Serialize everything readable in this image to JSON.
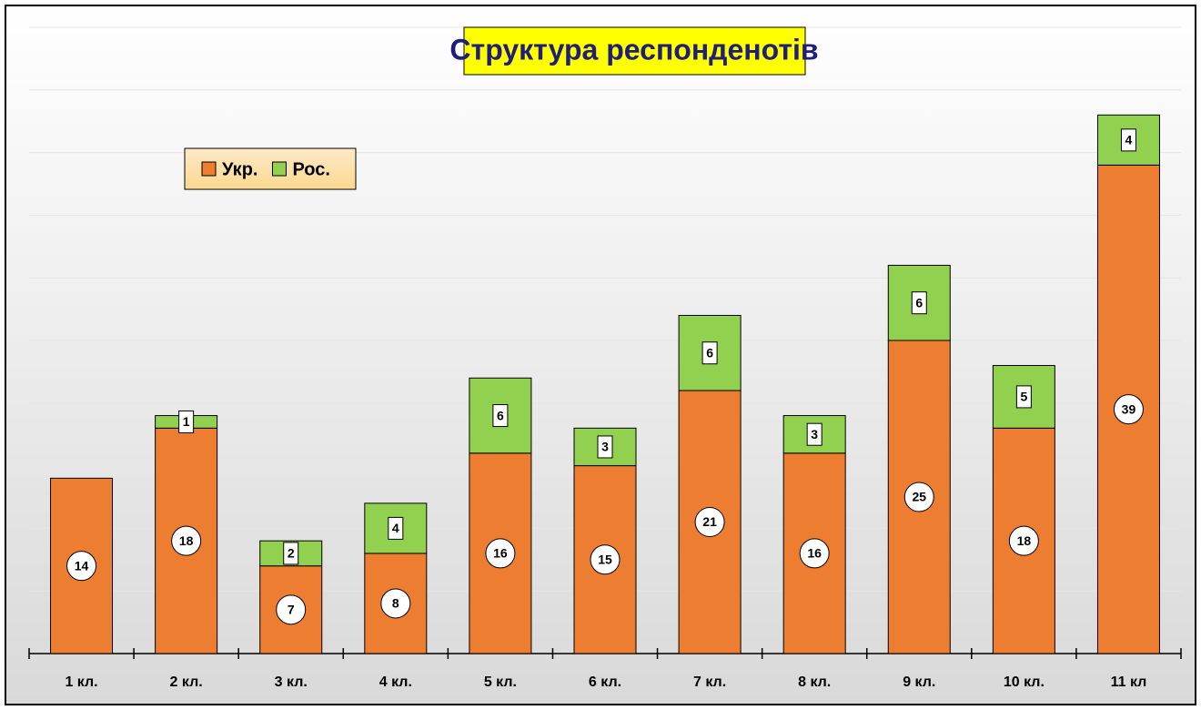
{
  "chart_data": {
    "type": "stacked_bar",
    "title": "Структура респонденотів",
    "categories": [
      "1 кл.",
      "2 кл.",
      "3 кл.",
      "4 кл.",
      "5 кл.",
      "6 кл.",
      "7 кл.",
      "8 кл.",
      "9 кл.",
      "10 кл.",
      "11 кл"
    ],
    "series": [
      {
        "name": "Укр.",
        "color": "#ed7d31",
        "values": [
          14,
          18,
          7,
          8,
          16,
          15,
          21,
          16,
          25,
          18,
          39
        ]
      },
      {
        "name": "Рос.",
        "color": "#92d050",
        "values": [
          null,
          1,
          2,
          4,
          6,
          3,
          6,
          3,
          6,
          5,
          4
        ]
      }
    ],
    "ylim": [
      0,
      50
    ],
    "yticks": [
      0,
      5,
      10,
      15,
      20,
      25,
      30,
      35,
      40,
      45,
      50
    ],
    "grid": true
  }
}
